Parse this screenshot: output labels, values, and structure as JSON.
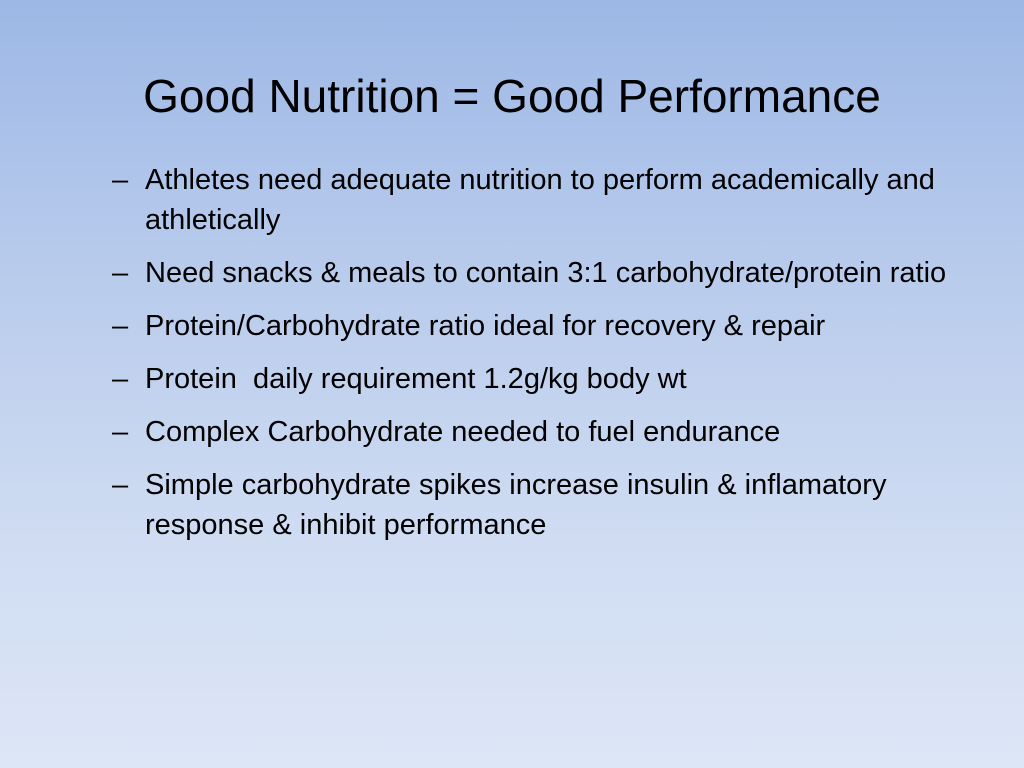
{
  "slide": {
    "title": "Good Nutrition = Good Performance",
    "bullet_glyph": "–",
    "bullets": [
      "Athletes need adequate nutrition to perform academically and athletically",
      "Need snacks & meals to contain 3:1 carbohydrate/protein ratio",
      "Protein/Carbohydrate ratio ideal for recovery & repair",
      "Protein  daily requirement 1.2g/kg body wt",
      "Complex Carbohydrate needed to fuel endurance",
      "Simple carbohydrate spikes increase insulin & inflamatory response & inhibit performance"
    ]
  },
  "colors": {
    "background_top": "#9db8e6",
    "background_bottom": "#dde6f6",
    "text": "#000000"
  }
}
